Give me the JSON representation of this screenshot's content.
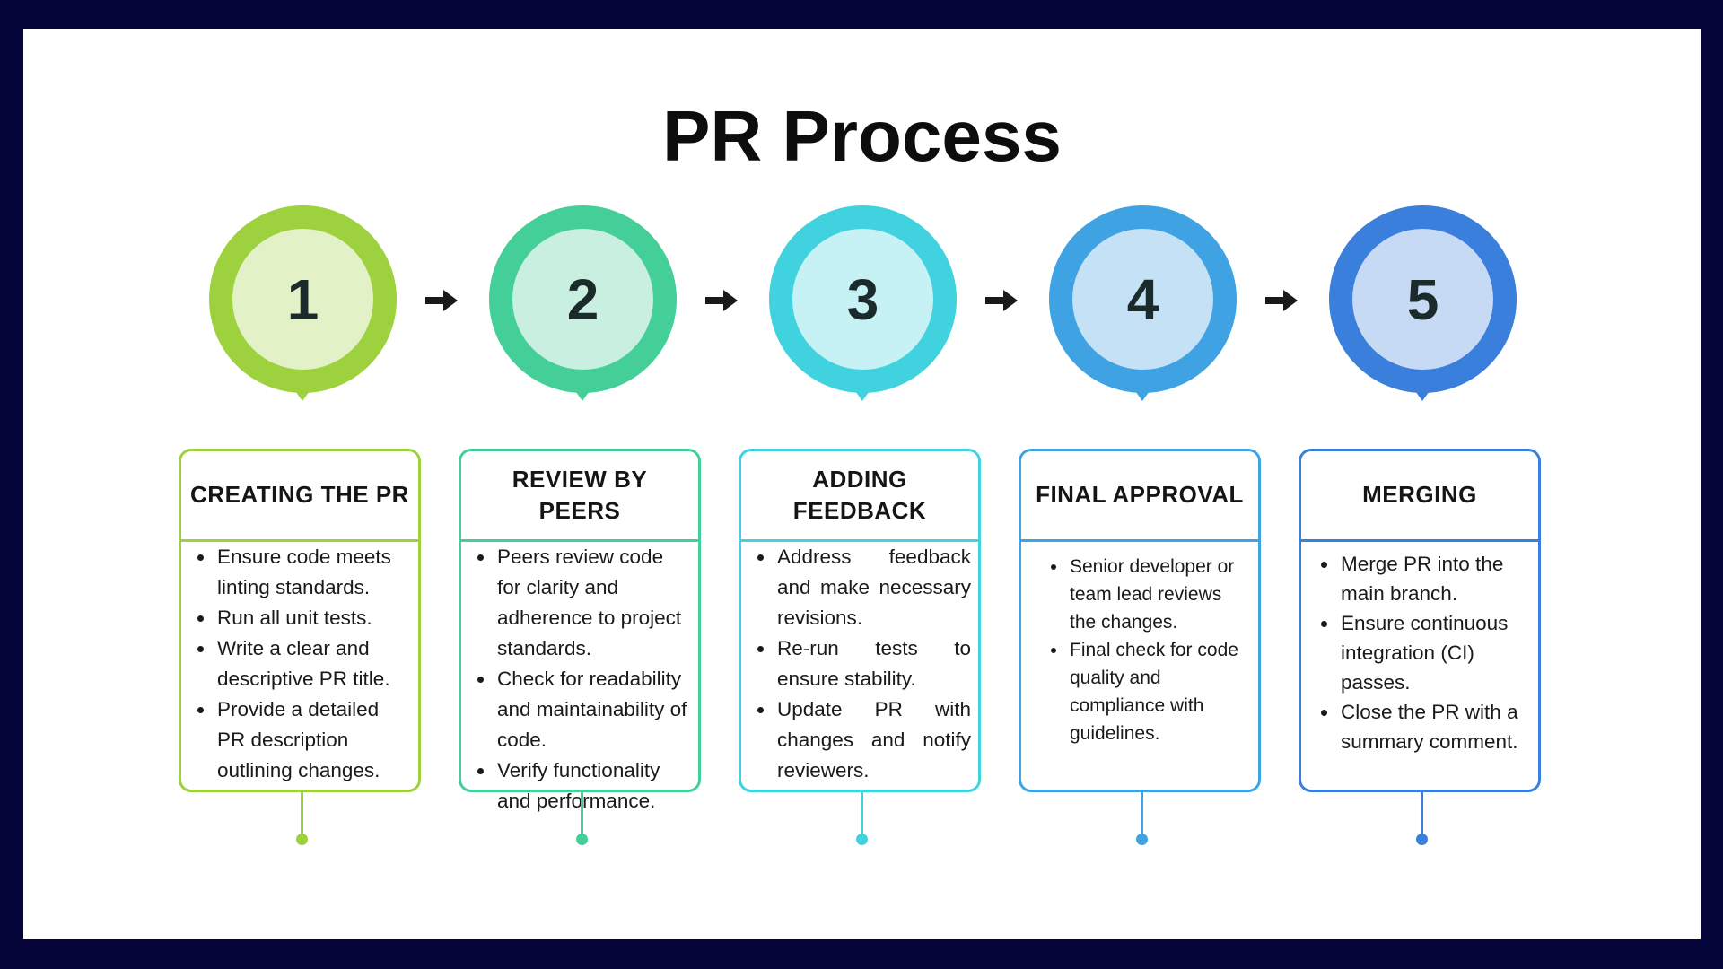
{
  "title": "PR Process",
  "colors": {
    "frame": "#05053a",
    "step1": "#9dd13d",
    "step1_inner": "#e2f2c6",
    "step2": "#44cf99",
    "step2_inner": "#c8efdf",
    "step3": "#41d2e0",
    "step3_inner": "#c6f1f5",
    "step4": "#3fa3e3",
    "step4_inner": "#c5e1f6",
    "step5": "#3a7fdb",
    "step5_inner": "#c7daf5"
  },
  "steps": [
    {
      "number": "1",
      "heading": "CREATING THE PR",
      "items": [
        "Ensure code meets linting standards.",
        "Run all unit tests.",
        "Write a clear and descriptive PR title.",
        "Provide a detailed PR description outlining changes."
      ]
    },
    {
      "number": "2",
      "heading": "REVIEW BY PEERS",
      "items": [
        "Peers review code for clarity and adherence to project standards.",
        "Check for readability and maintainability of code.",
        "Verify functionality and performance."
      ]
    },
    {
      "number": "3",
      "heading": "ADDING FEEDBACK",
      "items": [
        "Address feedback and make necessary revisions.",
        "Re-run tests to ensure stability.",
        "Update PR with changes and notify reviewers."
      ]
    },
    {
      "number": "4",
      "heading": "FINAL APPROVAL",
      "items": [
        "Senior developer or team lead reviews the changes.",
        "Final check for code quality and compliance with guidelines."
      ]
    },
    {
      "number": "5",
      "heading": "MERGING",
      "items": [
        "Merge PR into the main branch.",
        "Ensure continuous integration (CI) passes.",
        "Close the PR with a summary comment."
      ]
    }
  ]
}
